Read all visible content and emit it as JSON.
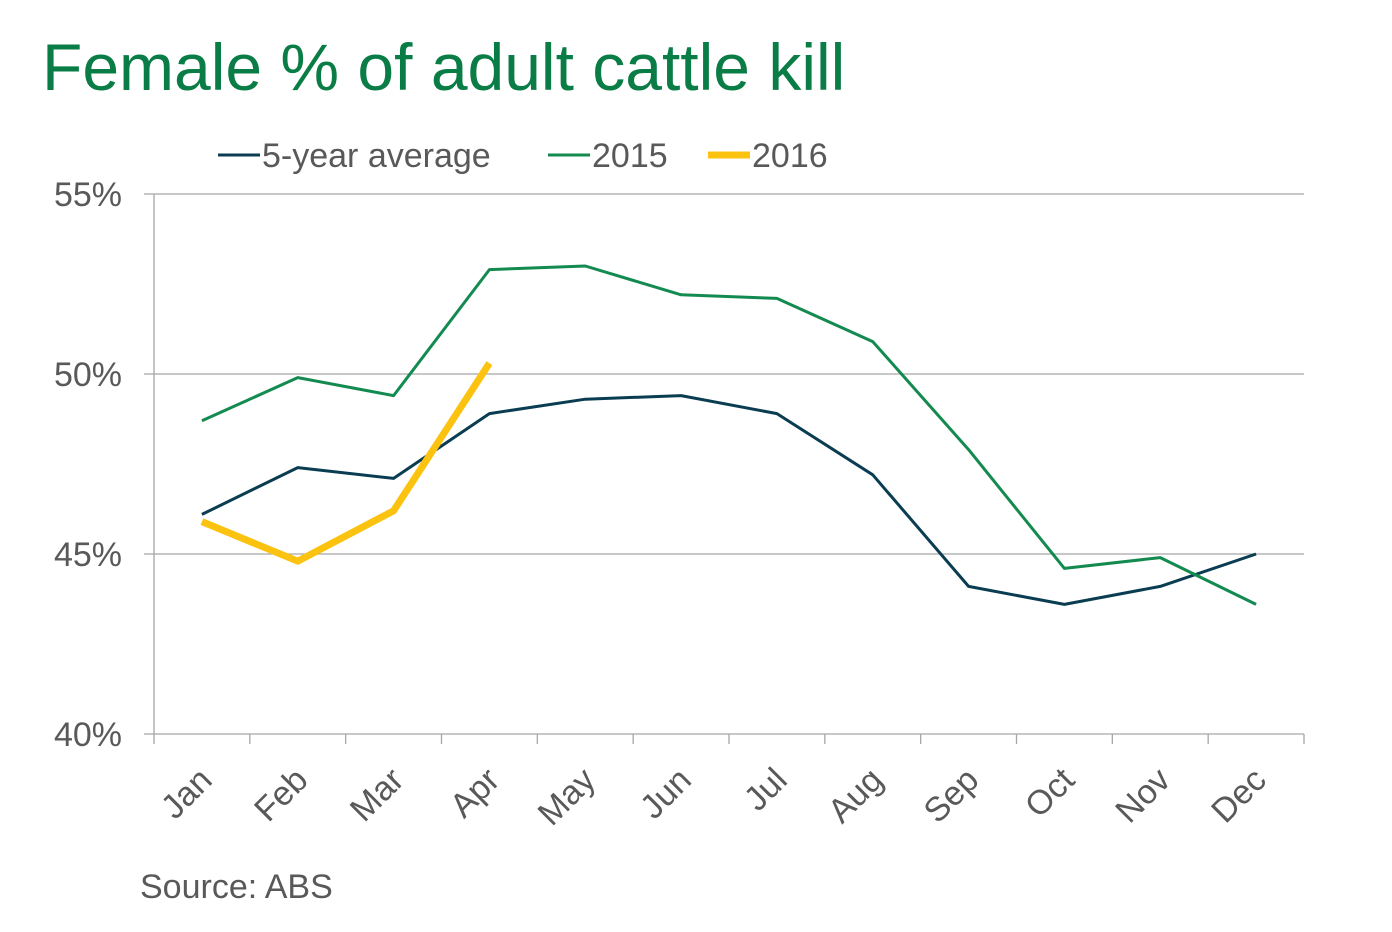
{
  "chart_data": {
    "type": "line",
    "title": "Female % of adult cattle kill",
    "source": "Source: ABS",
    "categories": [
      "Jan",
      "Feb",
      "Mar",
      "Apr",
      "May",
      "Jun",
      "Jul",
      "Aug",
      "Sep",
      "Oct",
      "Nov",
      "Dec"
    ],
    "series": [
      {
        "name": "5-year average",
        "color": "#0b3d52",
        "width": 3,
        "values": [
          46.1,
          47.4,
          47.1,
          48.9,
          49.3,
          49.4,
          48.9,
          47.2,
          44.1,
          43.6,
          44.1,
          45.0
        ]
      },
      {
        "name": "2015",
        "color": "#138a4f",
        "width": 3,
        "values": [
          48.7,
          49.9,
          49.4,
          52.9,
          53.0,
          52.2,
          52.1,
          50.9,
          47.9,
          44.6,
          44.9,
          43.6
        ]
      },
      {
        "name": "2016",
        "color": "#fbc20f",
        "width": 7,
        "values": [
          45.9,
          44.8,
          46.2,
          50.3,
          null,
          null,
          null,
          null,
          null,
          null,
          null,
          null
        ]
      }
    ],
    "ylim": [
      40,
      55
    ],
    "yticks": [
      {
        "value": 40,
        "label": "40%"
      },
      {
        "value": 45,
        "label": "45%"
      },
      {
        "value": 50,
        "label": "50%"
      },
      {
        "value": 55,
        "label": "55%"
      }
    ],
    "grid": true,
    "legend": "top"
  }
}
